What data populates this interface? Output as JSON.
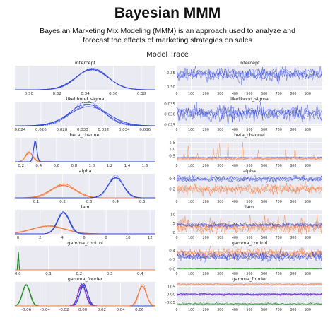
{
  "header": {
    "title": "Bayesian MMM",
    "subtitle": "Bayesian Marketing Mix Modeling (MMM) is an approach used to analyze and forecast the effects of marketing strategies on sales"
  },
  "figure": {
    "title": "Model Trace"
  },
  "colors": {
    "blue": "#2d43d9",
    "orange": "#f47b3b",
    "green": "#228b22",
    "purple": "#8b2fbf",
    "panel_bg": "#eaeaf2",
    "grid": "#ffffff"
  },
  "chart_data": [
    {
      "type": "area",
      "panel": "density",
      "title": "intercept",
      "xticks": [
        "0.30",
        "0.32",
        "0.34",
        "0.36",
        "0.38"
      ],
      "xlim": [
        0.29,
        0.39
      ],
      "series": [
        {
          "color": "blue",
          "mean": 0.345,
          "sd": 0.011,
          "chains": 4
        }
      ]
    },
    {
      "type": "line",
      "panel": "trace",
      "title": "intercept",
      "yticks": [
        "0.30",
        "0.35"
      ],
      "ylim": [
        0.29,
        0.375
      ],
      "xticks": [
        "0",
        "100",
        "200",
        "300",
        "400",
        "500",
        "600",
        "700",
        "800",
        "900"
      ],
      "series": [
        {
          "color": "blue",
          "mean": 0.345,
          "sd": 0.011,
          "chains": 4
        }
      ]
    },
    {
      "type": "area",
      "panel": "density",
      "title": "likelihood_sigma",
      "xticks": [
        "0.024",
        "0.026",
        "0.028",
        "0.030",
        "0.032",
        "0.034",
        "0.036"
      ],
      "xlim": [
        0.0235,
        0.037
      ],
      "series": [
        {
          "color": "blue",
          "mean": 0.0305,
          "sd": 0.0017,
          "chains": 4
        }
      ]
    },
    {
      "type": "line",
      "panel": "trace",
      "title": "likelihood_sigma",
      "yticks": [
        "0.025",
        "0.030",
        "0.035"
      ],
      "ylim": [
        0.0245,
        0.036
      ],
      "xticks": [
        "0",
        "100",
        "200",
        "300",
        "400",
        "500",
        "600",
        "700",
        "800",
        "900"
      ],
      "series": [
        {
          "color": "blue",
          "mean": 0.0305,
          "sd": 0.0017,
          "chains": 4
        }
      ]
    },
    {
      "type": "area",
      "panel": "density",
      "title": "beta_channel",
      "xticks": [
        "0.2",
        "0.4",
        "0.6",
        "0.8",
        "1.0",
        "1.2",
        "1.4",
        "1.6"
      ],
      "xlim": [
        0.13,
        1.72
      ],
      "series": [
        {
          "color": "orange",
          "mean": 0.29,
          "sd": 0.04,
          "chains": 4,
          "tail": 1.6
        },
        {
          "color": "blue",
          "mean": 0.36,
          "sd": 0.018,
          "chains": 4
        }
      ]
    },
    {
      "type": "line",
      "panel": "trace",
      "title": "beta_channel",
      "yticks": [
        "0.5",
        "1.0",
        "1.5"
      ],
      "ylim": [
        0.05,
        1.85
      ],
      "xticks": [
        "0",
        "100",
        "200",
        "300",
        "400",
        "500",
        "600",
        "700",
        "800",
        "900"
      ],
      "series": [
        {
          "color": "orange",
          "mean": 0.29,
          "sd": 0.05,
          "chains": 4,
          "spikes": 1.6
        },
        {
          "color": "blue",
          "mean": 0.36,
          "sd": 0.018,
          "chains": 4
        }
      ]
    },
    {
      "type": "area",
      "panel": "density",
      "title": "alpha",
      "xticks": [
        "0.1",
        "0.2",
        "0.3",
        "0.4",
        "0.5"
      ],
      "xlim": [
        0.02,
        0.55
      ],
      "series": [
        {
          "color": "orange",
          "mean": 0.2,
          "sd": 0.045,
          "chains": 4
        },
        {
          "color": "blue",
          "mean": 0.4,
          "sd": 0.028,
          "chains": 4
        }
      ]
    },
    {
      "type": "line",
      "panel": "trace",
      "title": "alpha",
      "yticks": [
        "0.2",
        "0.4"
      ],
      "ylim": [
        0.03,
        0.5
      ],
      "xticks": [
        "0",
        "100",
        "200",
        "300",
        "400",
        "500",
        "600",
        "700",
        "800",
        "900"
      ],
      "series": [
        {
          "color": "orange",
          "mean": 0.2,
          "sd": 0.045,
          "chains": 4
        },
        {
          "color": "blue",
          "mean": 0.4,
          "sd": 0.028,
          "chains": 4
        }
      ]
    },
    {
      "type": "area",
      "panel": "density",
      "title": "lam",
      "xticks": [
        "0",
        "2",
        "4",
        "6",
        "8",
        "10",
        "12"
      ],
      "xlim": [
        -0.3,
        12.5
      ],
      "series": [
        {
          "color": "orange",
          "mean": 2.8,
          "sd": 1.5,
          "chains": 4,
          "tail": 11
        },
        {
          "color": "blue",
          "mean": 4.1,
          "sd": 0.55,
          "chains": 4
        }
      ]
    },
    {
      "type": "line",
      "panel": "trace",
      "title": "lam",
      "yticks": [
        "0",
        "5",
        "10"
      ],
      "ylim": [
        -0.8,
        12.5
      ],
      "xticks": [
        "0",
        "100",
        "200",
        "300",
        "400",
        "500",
        "600",
        "700",
        "800",
        "900"
      ],
      "series": [
        {
          "color": "orange",
          "mean": 3.0,
          "sd": 1.6,
          "chains": 4,
          "spikes": 10
        },
        {
          "color": "blue",
          "mean": 4.1,
          "sd": 0.55,
          "chains": 4
        }
      ]
    },
    {
      "type": "area",
      "panel": "density",
      "title": "gamma_control",
      "xticks": [
        "0.0",
        "0.1",
        "0.2",
        "0.3",
        "0.4"
      ],
      "xlim": [
        -0.01,
        0.45
      ],
      "series": [
        {
          "color": "green",
          "mean": 0.001,
          "sd": 0.0008,
          "chains": 4
        },
        {
          "color": "blue",
          "mean": 0.27,
          "sd": 0.05,
          "chains": 4,
          "flat": true
        },
        {
          "color": "orange",
          "mean": 0.33,
          "sd": 0.05,
          "chains": 4,
          "flat": true
        }
      ]
    },
    {
      "type": "line",
      "panel": "trace",
      "title": "gamma_control",
      "yticks": [
        "0.0",
        "0.2",
        "0.4"
      ],
      "ylim": [
        -0.02,
        0.5
      ],
      "xticks": [
        "0",
        "100",
        "200",
        "300",
        "400",
        "500",
        "600",
        "700",
        "800",
        "900"
      ],
      "series": [
        {
          "color": "orange",
          "mean": 0.34,
          "sd": 0.05,
          "chains": 4
        },
        {
          "color": "blue",
          "mean": 0.27,
          "sd": 0.045,
          "chains": 4
        },
        {
          "color": "green",
          "mean": 0.005,
          "sd": 0.003,
          "chains": 4
        }
      ]
    },
    {
      "type": "area",
      "panel": "density",
      "title": "gamma_fourier",
      "xticks": [
        "-0.06",
        "-0.04",
        "-0.02",
        "0.00",
        "0.02",
        "0.04",
        "0.06"
      ],
      "xlim": [
        -0.072,
        0.077
      ],
      "series": [
        {
          "color": "green",
          "mean": -0.06,
          "sd": 0.004,
          "chains": 4
        },
        {
          "color": "purple",
          "mean": -0.001,
          "sd": 0.004,
          "chains": 4
        },
        {
          "color": "blue",
          "mean": 0.001,
          "sd": 0.004,
          "chains": 4
        },
        {
          "color": "orange",
          "mean": 0.063,
          "sd": 0.004,
          "chains": 4
        }
      ]
    },
    {
      "type": "line",
      "panel": "trace",
      "title": "gamma_fourier",
      "yticks": [
        "-0.05",
        "0.00",
        "0.05"
      ],
      "ylim": [
        -0.072,
        0.078
      ],
      "xticks": [
        "0",
        "100",
        "200",
        "300",
        "400",
        "500",
        "600",
        "700",
        "800",
        "900"
      ],
      "series": [
        {
          "color": "orange",
          "mean": 0.063,
          "sd": 0.004,
          "chains": 4
        },
        {
          "color": "blue",
          "mean": 0.001,
          "sd": 0.004,
          "chains": 4
        },
        {
          "color": "purple",
          "mean": -0.001,
          "sd": 0.004,
          "chains": 4
        },
        {
          "color": "green",
          "mean": -0.06,
          "sd": 0.004,
          "chains": 4
        }
      ]
    }
  ]
}
